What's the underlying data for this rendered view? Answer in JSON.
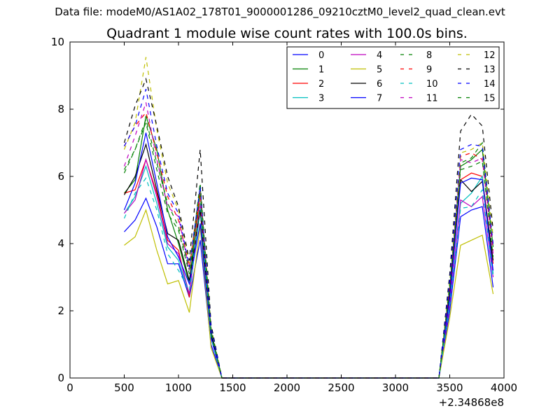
{
  "suptitle": "Data file: modeM0/AS1A02_178T01_9000001286_09210cztM0_level2_quad_clean.evt",
  "chart_data": {
    "type": "line",
    "title": "Quadrant 1 module wise count rates with 100.0s bins.",
    "xlabel": "",
    "ylabel": "",
    "x_offset_label": "+2.34868e8",
    "xlim": [
      0,
      4000
    ],
    "ylim": [
      0,
      10
    ],
    "x_ticks": [
      0,
      500,
      1000,
      1500,
      2000,
      2500,
      3000,
      3500,
      4000
    ],
    "y_ticks": [
      0,
      2,
      4,
      6,
      8,
      10
    ],
    "grid": false,
    "legend_position": "top-right",
    "x": [
      500,
      600,
      700,
      800,
      900,
      1000,
      1100,
      1200,
      1300,
      1400,
      1500,
      1600,
      1700,
      1800,
      1900,
      2000,
      2100,
      2200,
      2300,
      2400,
      2500,
      2600,
      2700,
      2800,
      2900,
      3000,
      3100,
      3200,
      3300,
      3400,
      3500,
      3600,
      3700,
      3800,
      3900
    ],
    "series": [
      {
        "name": "0",
        "color": "#0000ff",
        "dash": "solid",
        "values": [
          4.35,
          4.7,
          5.35,
          4.5,
          3.4,
          3.4,
          2.4,
          4.1,
          1.0,
          0,
          0,
          0,
          0,
          0,
          0,
          0,
          0,
          0,
          0,
          0,
          0,
          0,
          0,
          0,
          0,
          0,
          0,
          0,
          0,
          0,
          2.0,
          4.8,
          5.0,
          5.1,
          2.7
        ]
      },
      {
        "name": "1",
        "color": "#008000",
        "dash": "solid",
        "values": [
          5.5,
          5.9,
          7.8,
          6.8,
          5.0,
          4.0,
          2.8,
          5.7,
          1.4,
          0,
          0,
          0,
          0,
          0,
          0,
          0,
          0,
          0,
          0,
          0,
          0,
          0,
          0,
          0,
          0,
          0,
          0,
          0,
          0,
          0,
          2.7,
          6.3,
          6.5,
          6.8,
          3.9
        ]
      },
      {
        "name": "2",
        "color": "#ff0000",
        "dash": "solid",
        "values": [
          5.5,
          5.6,
          6.5,
          5.5,
          4.1,
          3.8,
          2.4,
          5.5,
          1.3,
          0,
          0,
          0,
          0,
          0,
          0,
          0,
          0,
          0,
          0,
          0,
          0,
          0,
          0,
          0,
          0,
          0,
          0,
          0,
          0,
          0,
          2.6,
          5.9,
          6.1,
          6.0,
          3.4
        ]
      },
      {
        "name": "3",
        "color": "#00bfbf",
        "dash": "solid",
        "values": [
          4.9,
          5.4,
          6.3,
          5.2,
          3.9,
          3.5,
          2.5,
          5.0,
          1.2,
          0,
          0,
          0,
          0,
          0,
          0,
          0,
          0,
          0,
          0,
          0,
          0,
          0,
          0,
          0,
          0,
          0,
          0,
          0,
          0,
          0,
          2.2,
          5.2,
          5.5,
          6.0,
          3.1
        ]
      },
      {
        "name": "4",
        "color": "#bf00bf",
        "dash": "solid",
        "values": [
          4.9,
          5.3,
          6.5,
          5.4,
          4.0,
          3.7,
          2.5,
          5.2,
          1.2,
          0,
          0,
          0,
          0,
          0,
          0,
          0,
          0,
          0,
          0,
          0,
          0,
          0,
          0,
          0,
          0,
          0,
          0,
          0,
          0,
          0,
          2.2,
          5.3,
          5.1,
          5.4,
          3.0
        ]
      },
      {
        "name": "5",
        "color": "#bfbf00",
        "dash": "solid",
        "values": [
          3.95,
          4.2,
          5.0,
          3.8,
          2.8,
          2.9,
          1.95,
          4.5,
          0.9,
          0,
          0,
          0,
          0,
          0,
          0,
          0,
          0,
          0,
          0,
          0,
          0,
          0,
          0,
          0,
          0,
          0,
          0,
          0,
          0,
          0,
          1.8,
          3.95,
          4.1,
          4.25,
          2.5
        ]
      },
      {
        "name": "6",
        "color": "#000000",
        "dash": "solid",
        "values": [
          5.45,
          6.0,
          6.95,
          5.6,
          4.3,
          4.1,
          2.9,
          5.0,
          1.3,
          0,
          0,
          0,
          0,
          0,
          0,
          0,
          0,
          0,
          0,
          0,
          0,
          0,
          0,
          0,
          0,
          0,
          0,
          0,
          0,
          0,
          2.5,
          5.9,
          5.55,
          5.85,
          3.5
        ]
      },
      {
        "name": "7",
        "color": "#0000ff",
        "dash": "solid",
        "values": [
          5.0,
          5.8,
          7.3,
          5.8,
          4.2,
          3.6,
          2.8,
          4.6,
          1.2,
          0,
          0,
          0,
          0,
          0,
          0,
          0,
          0,
          0,
          0,
          0,
          0,
          0,
          0,
          0,
          0,
          0,
          0,
          0,
          0,
          0,
          2.4,
          5.8,
          5.95,
          5.9,
          3.2
        ]
      },
      {
        "name": "8",
        "color": "#008000",
        "dash": "dashed",
        "values": [
          6.2,
          6.8,
          7.7,
          6.4,
          5.2,
          4.5,
          3.2,
          5.8,
          1.5,
          0,
          0,
          0,
          0,
          0,
          0,
          0,
          0,
          0,
          0,
          0,
          0,
          0,
          0,
          0,
          0,
          0,
          0,
          0,
          0,
          0,
          2.8,
          6.4,
          6.55,
          7.0,
          3.9
        ]
      },
      {
        "name": "9",
        "color": "#ff0000",
        "dash": "dashed",
        "values": [
          6.9,
          7.5,
          7.9,
          6.7,
          5.4,
          4.7,
          3.3,
          5.5,
          1.5,
          0,
          0,
          0,
          0,
          0,
          0,
          0,
          0,
          0,
          0,
          0,
          0,
          0,
          0,
          0,
          0,
          0,
          0,
          0,
          0,
          0,
          2.8,
          6.6,
          6.7,
          6.5,
          3.8
        ]
      },
      {
        "name": "10",
        "color": "#00bfbf",
        "dash": "dashed",
        "values": [
          4.75,
          5.5,
          5.95,
          5.0,
          3.7,
          3.2,
          2.6,
          5.2,
          1.2,
          0,
          0,
          0,
          0,
          0,
          0,
          0,
          0,
          0,
          0,
          0,
          0,
          0,
          0,
          0,
          0,
          0,
          0,
          0,
          0,
          0,
          2.2,
          5.05,
          5.1,
          5.6,
          3.0
        ]
      },
      {
        "name": "11",
        "color": "#bf00bf",
        "dash": "dashed",
        "values": [
          6.3,
          7.2,
          8.2,
          6.5,
          5.1,
          4.8,
          3.2,
          5.6,
          1.4,
          0,
          0,
          0,
          0,
          0,
          0,
          0,
          0,
          0,
          0,
          0,
          0,
          0,
          0,
          0,
          0,
          0,
          0,
          0,
          0,
          0,
          2.7,
          6.5,
          6.4,
          6.55,
          3.7
        ]
      },
      {
        "name": "12",
        "color": "#bfbf00",
        "dash": "dashed",
        "values": [
          6.8,
          7.6,
          9.55,
          7.4,
          5.8,
          5.0,
          3.4,
          5.6,
          1.5,
          0,
          0,
          0,
          0,
          0,
          0,
          0,
          0,
          0,
          0,
          0,
          0,
          0,
          0,
          0,
          0,
          0,
          0,
          0,
          0,
          0,
          2.9,
          6.7,
          6.8,
          7.0,
          4.2
        ]
      },
      {
        "name": "13",
        "color": "#000000",
        "dash": "dashed",
        "values": [
          7.0,
          8.1,
          8.9,
          7.5,
          6.0,
          5.1,
          3.5,
          6.8,
          1.6,
          0,
          0,
          0,
          0,
          0,
          0,
          0,
          0,
          0,
          0,
          0,
          0,
          0,
          0,
          0,
          0,
          0,
          0,
          0,
          0,
          0,
          3.1,
          7.35,
          7.85,
          7.5,
          4.4
        ]
      },
      {
        "name": "14",
        "color": "#0000ff",
        "dash": "dashed",
        "values": [
          6.9,
          7.5,
          8.6,
          6.9,
          5.5,
          4.9,
          3.3,
          5.7,
          1.5,
          0,
          0,
          0,
          0,
          0,
          0,
          0,
          0,
          0,
          0,
          0,
          0,
          0,
          0,
          0,
          0,
          0,
          0,
          0,
          0,
          0,
          2.9,
          6.8,
          6.95,
          6.9,
          4.0
        ]
      },
      {
        "name": "15",
        "color": "#008000",
        "dash": "dashed",
        "values": [
          6.1,
          6.8,
          7.6,
          6.2,
          4.9,
          4.4,
          3.1,
          5.5,
          1.4,
          0,
          0,
          0,
          0,
          0,
          0,
          0,
          0,
          0,
          0,
          0,
          0,
          0,
          0,
          0,
          0,
          0,
          0,
          0,
          0,
          0,
          2.7,
          6.2,
          6.3,
          6.45,
          3.6
        ]
      }
    ]
  }
}
